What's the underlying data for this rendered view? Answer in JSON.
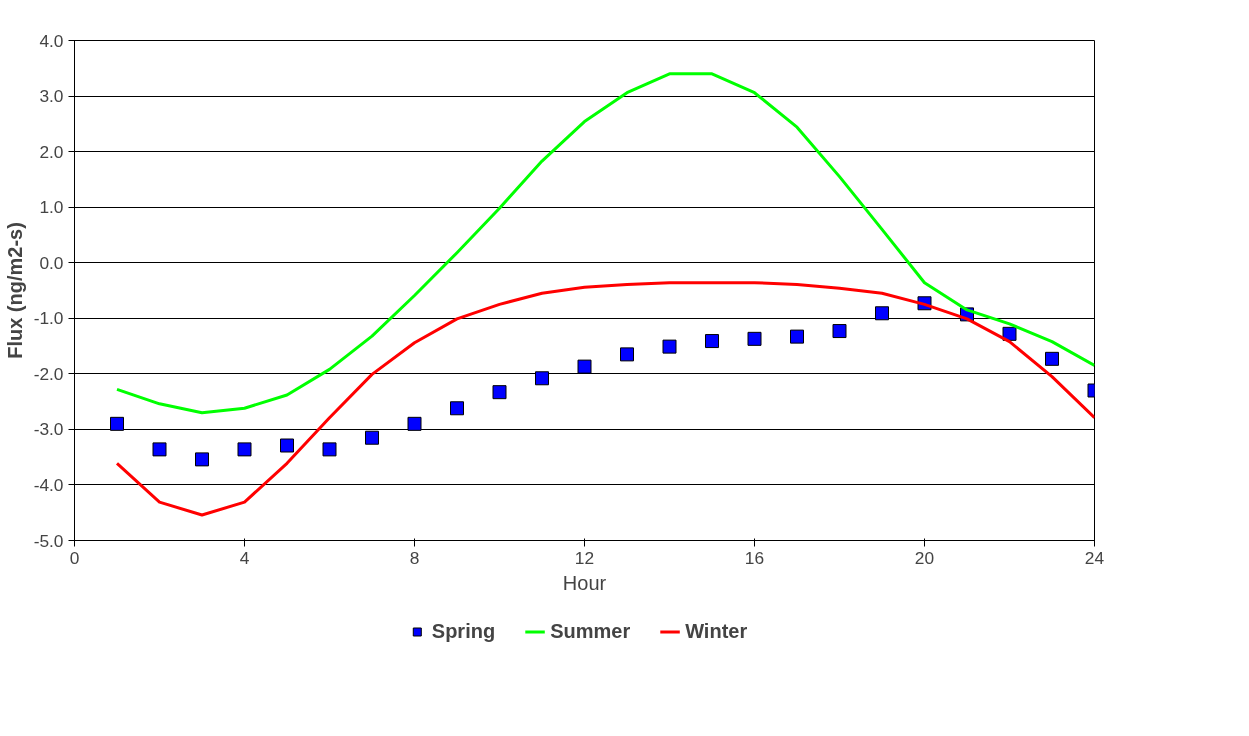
{
  "chart_data": {
    "type": "line",
    "xlabel": "Hour",
    "ylabel": "Flux (ng/m2-s)",
    "x": [
      1,
      2,
      3,
      4,
      5,
      6,
      7,
      8,
      9,
      10,
      11,
      12,
      13,
      14,
      15,
      16,
      17,
      18,
      19,
      20,
      21,
      22,
      23,
      24
    ],
    "series": [
      {
        "name": "Spring",
        "type": "scatter",
        "marker": "square",
        "color": "#0000ff",
        "values": [
          -2.9,
          -3.36,
          -3.54,
          -3.36,
          -3.29,
          -3.36,
          -3.15,
          -2.9,
          -2.62,
          -2.33,
          -2.08,
          -1.87,
          -1.65,
          -1.51,
          -1.41,
          -1.37,
          -1.33,
          -1.23,
          -0.91,
          -0.73,
          -0.93,
          -1.28,
          -1.73,
          -2.3
        ]
      },
      {
        "name": "Summer",
        "type": "line",
        "color": "#00ff00",
        "values": [
          -2.28,
          -2.54,
          -2.7,
          -2.62,
          -2.38,
          -1.92,
          -1.32,
          -0.59,
          0.18,
          0.98,
          1.83,
          2.54,
          3.06,
          3.4,
          3.4,
          3.06,
          2.44,
          1.55,
          0.6,
          -0.36,
          -0.85,
          -1.1,
          -1.42,
          -1.85
        ]
      },
      {
        "name": "Winter",
        "type": "line",
        "color": "#ff0000",
        "values": [
          -3.61,
          -4.31,
          -4.54,
          -4.31,
          -3.61,
          -2.79,
          -2.01,
          -1.44,
          -1.01,
          -0.75,
          -0.55,
          -0.44,
          -0.39,
          -0.36,
          -0.36,
          -0.36,
          -0.39,
          -0.46,
          -0.55,
          -0.75,
          -1.01,
          -1.42,
          -2.05,
          -2.79
        ]
      }
    ],
    "xlim": [
      0,
      24
    ],
    "xticks": [
      0,
      4,
      8,
      12,
      16,
      20,
      24
    ],
    "ylim": [
      -5,
      4
    ],
    "yticks": [
      {
        "value": -5,
        "label": "-5.0"
      },
      {
        "value": -4,
        "label": "-4.0"
      },
      {
        "value": -3,
        "label": "-3.0"
      },
      {
        "value": -2,
        "label": "-2.0"
      },
      {
        "value": -1,
        "label": "-1.0"
      },
      {
        "value": 0,
        "label": "0.0"
      },
      {
        "value": 1,
        "label": "1.0"
      },
      {
        "value": 2,
        "label": "2.0"
      },
      {
        "value": 3,
        "label": "3.0"
      },
      {
        "value": 4,
        "label": "4.0"
      }
    ],
    "grid": "y",
    "legend": "bottom",
    "line_style": "solid"
  }
}
